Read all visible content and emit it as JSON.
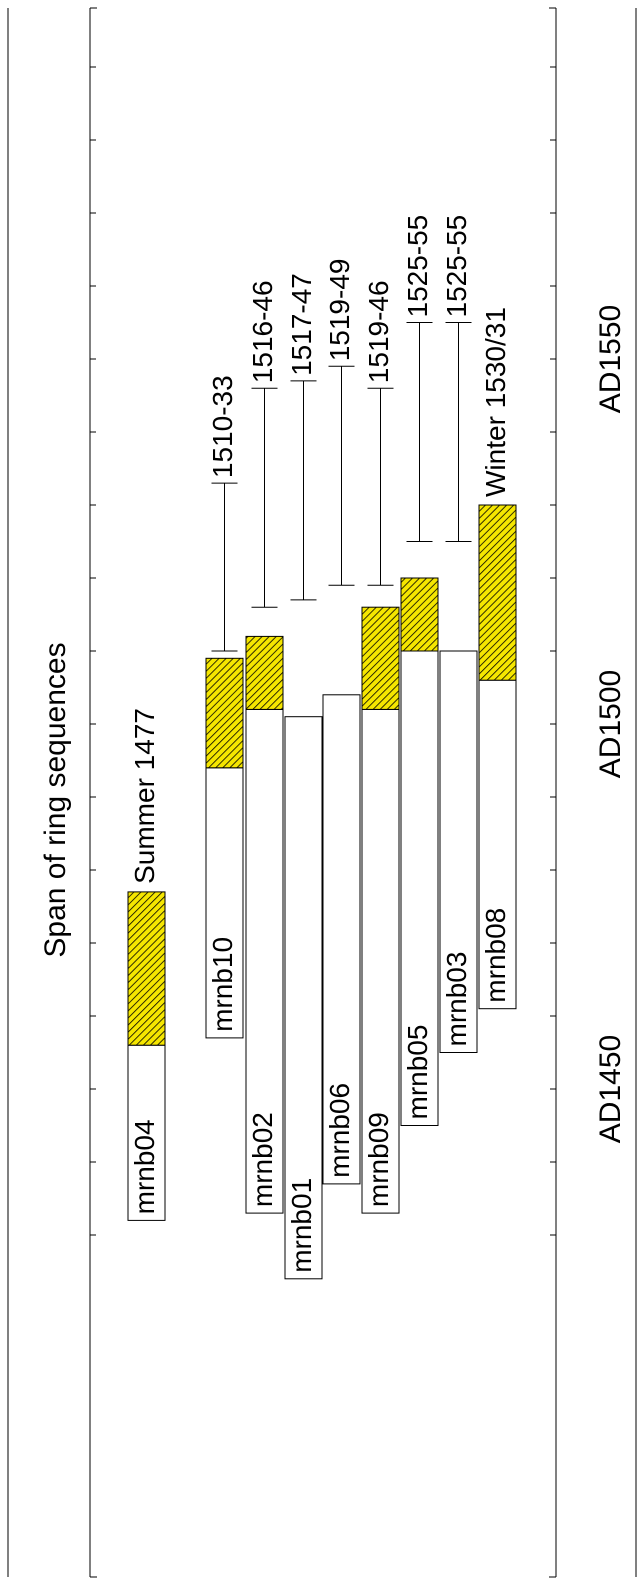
{
  "chart_data": {
    "type": "bar",
    "orientation": "horizontal-span, rotated 90 degrees clockwise (year axis runs bottom to top)",
    "title": "Span of ring sequences",
    "xlabel": "",
    "ylabel": "",
    "xlim": [
      1425,
      1590
    ],
    "x_ticks_major": [
      1450,
      1500,
      1550
    ],
    "x_tick_labels": [
      "AD1450",
      "AD1500",
      "AD1550"
    ],
    "x_ticks_minor_step": 10,
    "grid": false,
    "legend": "none",
    "colors": {
      "sapwood": "#f5e600",
      "hatch": "#000000",
      "heartwood": "#ffffff",
      "outline": "#000000"
    },
    "series": [
      {
        "name": "mrnb04",
        "start": 1432,
        "heartwood_end": 1456,
        "sapwood_end": 1477,
        "annotation": "Summer 1477"
      },
      {
        "name": "mrnb10",
        "start": 1457,
        "heartwood_end": 1494,
        "sapwood_end": 1509,
        "estimate": "1510-33",
        "estimate_from": 1510,
        "estimate_to": 1533
      },
      {
        "name": "mrnb02",
        "start": 1433,
        "heartwood_end": 1502,
        "sapwood_end": 1512,
        "estimate": "1516-46",
        "estimate_from": 1516,
        "estimate_to": 1546
      },
      {
        "name": "mrnb01",
        "start": 1424,
        "heartwood_end": 1501,
        "sapwood_end": null,
        "estimate": "1517-47",
        "estimate_from": 1517,
        "estimate_to": 1547
      },
      {
        "name": "mrnb06",
        "start": 1437,
        "heartwood_end": 1504,
        "sapwood_end": null,
        "estimate": "1519-49",
        "estimate_from": 1519,
        "estimate_to": 1549
      },
      {
        "name": "mrnb09",
        "start": 1433,
        "heartwood_end": 1502,
        "sapwood_end": 1516,
        "estimate": "1519-46",
        "estimate_from": 1519,
        "estimate_to": 1546
      },
      {
        "name": "mrnb05",
        "start": 1445,
        "heartwood_end": 1510,
        "sapwood_end": 1520,
        "estimate": "1525-55",
        "estimate_from": 1525,
        "estimate_to": 1555
      },
      {
        "name": "mrnb03",
        "start": 1455,
        "heartwood_end": 1510,
        "sapwood_end": null,
        "estimate": "1525-55",
        "estimate_from": 1525,
        "estimate_to": 1555
      },
      {
        "name": "mrnb08",
        "start": 1461,
        "heartwood_end": 1506,
        "sapwood_end": 1530,
        "annotation": "Winter 1530/31"
      }
    ]
  }
}
